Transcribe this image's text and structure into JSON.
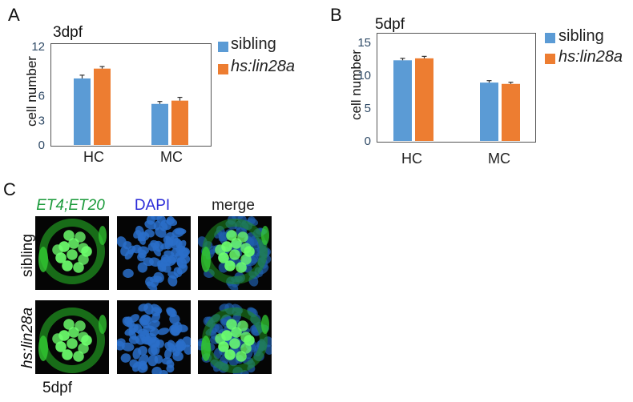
{
  "panels": {
    "a_letter": "A",
    "b_letter": "B",
    "c_letter": "C"
  },
  "colors": {
    "sibling": "#5b9bd5",
    "lin28a": "#ed7d31",
    "errorbar": "#333333",
    "green": "#33cc33",
    "blue": "#2a6fc9"
  },
  "legend": {
    "sibling": "sibling",
    "lin28a": "hs:lin28a"
  },
  "chart_data": [
    {
      "type": "bar",
      "title": "3dpf",
      "ylabel": "cell number",
      "xlabel": "",
      "categories": [
        "HC",
        "MC"
      ],
      "ylim": [
        0,
        12
      ],
      "yticks": [
        "0",
        "3",
        "6",
        "12"
      ],
      "ytick_values": [
        0,
        3,
        6,
        12
      ],
      "series": [
        {
          "name": "sibling",
          "values": [
            8.1,
            5.0
          ],
          "errors": [
            0.4,
            0.3
          ]
        },
        {
          "name": "hs:lin28a",
          "values": [
            9.3,
            5.4
          ],
          "errors": [
            0.25,
            0.4
          ]
        }
      ],
      "legend_position": "right-outside",
      "grid": false
    },
    {
      "type": "bar",
      "title": "5dpf",
      "ylabel": "cell number",
      "xlabel": "",
      "categories": [
        "HC",
        "MC"
      ],
      "ylim": [
        0,
        16
      ],
      "yticks": [
        "0",
        "5",
        "10",
        "15"
      ],
      "ytick_values": [
        0,
        5,
        10,
        15
      ],
      "series": [
        {
          "name": "sibling",
          "values": [
            12.3,
            8.9
          ],
          "errors": [
            0.3,
            0.3
          ]
        },
        {
          "name": "hs:lin28a",
          "values": [
            12.6,
            8.7
          ],
          "errors": [
            0.3,
            0.25
          ]
        }
      ],
      "legend_position": "right-outside",
      "grid": false
    }
  ],
  "images": {
    "col_labels": [
      "ET4;ET20",
      "DAPI",
      "merge"
    ],
    "row_labels": [
      "sibling",
      "hs:lin28a"
    ],
    "stage": "5dpf"
  }
}
